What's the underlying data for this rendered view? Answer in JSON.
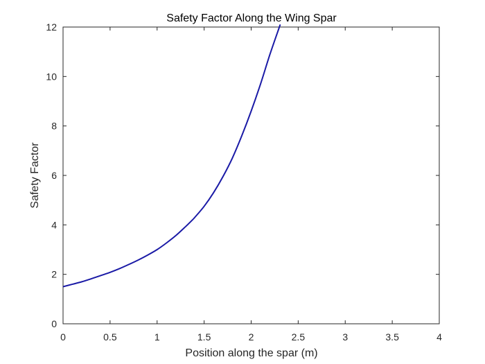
{
  "chart_data": {
    "type": "line",
    "title": "Safety Factor Along the Wing Spar",
    "xlabel": "Position along the spar (m)",
    "ylabel": "Safety Factor",
    "xlim": [
      0,
      4
    ],
    "ylim": [
      0,
      12
    ],
    "xticks": [
      "0",
      "0.5",
      "1",
      "1.5",
      "2",
      "2.5",
      "3",
      "3.5",
      "4"
    ],
    "yticks": [
      "0",
      "2",
      "4",
      "6",
      "8",
      "10",
      "12"
    ],
    "grid": false,
    "series": [
      {
        "color": "#1a1aa6",
        "x": [
          0,
          0.1,
          0.2,
          0.3,
          0.4,
          0.5,
          0.6,
          0.7,
          0.8,
          0.9,
          1.0,
          1.1,
          1.2,
          1.3,
          1.37,
          1.4,
          1.5,
          1.6,
          1.7,
          1.8,
          1.9,
          2.0,
          2.1,
          2.2,
          2.3,
          2.31
        ],
        "y": [
          1.5,
          1.6,
          1.7,
          1.82,
          1.95,
          2.08,
          2.23,
          2.4,
          2.58,
          2.78,
          3.0,
          3.27,
          3.57,
          3.92,
          4.18,
          4.3,
          4.75,
          5.3,
          5.95,
          6.7,
          7.6,
          8.6,
          9.7,
          10.9,
          12.0,
          12.1
        ]
      }
    ]
  }
}
